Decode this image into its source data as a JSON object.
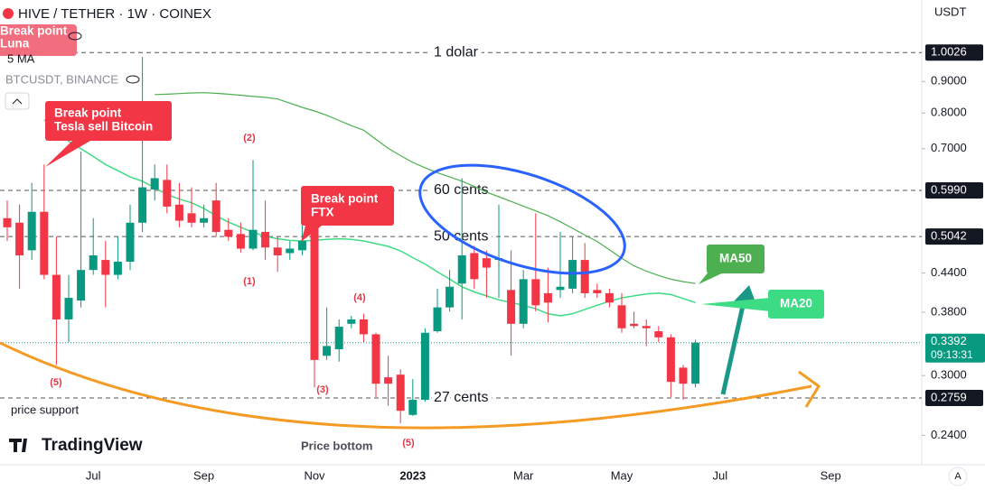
{
  "chart_data": {
    "type": "candlestick",
    "title": "HIVE / TETHER · 1W · COINEX",
    "currency": "USDT",
    "indicator_labels": [
      "5 MA",
      "BTCUSDT, BINANCE"
    ],
    "log_scale": true,
    "grid": false,
    "up_color": "#089981",
    "down_color": "#f23645",
    "ylim": [
      0.215,
      1.22
    ],
    "yticks": [
      {
        "value": 0.9,
        "label": "0.9000"
      },
      {
        "value": 0.8,
        "label": "0.8000"
      },
      {
        "value": 0.7,
        "label": "0.7000"
      },
      {
        "value": 0.44,
        "label": "0.4400"
      },
      {
        "value": 0.38,
        "label": "0.3800"
      },
      {
        "value": 0.3,
        "label": "0.3000"
      },
      {
        "value": 0.24,
        "label": "0.2400"
      }
    ],
    "categories": [
      null,
      null,
      null,
      null,
      null,
      null,
      null,
      "Jul",
      null,
      null,
      null,
      null,
      null,
      null,
      null,
      null,
      "Sep",
      null,
      null,
      null,
      null,
      null,
      null,
      null,
      null,
      "Nov",
      null,
      null,
      null,
      null,
      null,
      null,
      null,
      "2023",
      null,
      null,
      null,
      null,
      null,
      null,
      null,
      null,
      "Mar",
      null,
      null,
      null,
      null,
      null,
      null,
      null,
      "May",
      null,
      null,
      null,
      null,
      null,
      null,
      null,
      "Jul",
      null,
      null,
      null,
      null,
      null,
      null,
      null,
      null,
      "Sep"
    ],
    "open": [
      0.54,
      0.531,
      0.479,
      0.553,
      0.437,
      0.37,
      0.397,
      0.445,
      0.462,
      0.437,
      0.459,
      0.531,
      0.601,
      0.623,
      0.568,
      0.55,
      0.531,
      0.577,
      0.517,
      0.509,
      0.482,
      0.513,
      0.484,
      0.474,
      0.479,
      0.54,
      0.323,
      0.331,
      0.364,
      0.37,
      0.35,
      0.298,
      0.301,
      0.259,
      0.274,
      0.354,
      0.387,
      0.423,
      0.474,
      0.465,
      0.462,
      0.413,
      0.364,
      0.43,
      0.408,
      0.413,
      0.415,
      0.462,
      0.413,
      0.408,
      0.39,
      0.364,
      0.361,
      0.354,
      0.346,
      0.309,
      0.291,
      null,
      null,
      null,
      null,
      null,
      null,
      null,
      null,
      null,
      null,
      null
    ],
    "high": [
      0.577,
      0.568,
      0.616,
      0.66,
      0.504,
      0.437,
      0.693,
      0.54,
      0.496,
      0.504,
      0.568,
      0.986,
      0.66,
      0.66,
      0.616,
      0.606,
      0.568,
      0.616,
      0.54,
      0.531,
      0.671,
      0.577,
      0.504,
      0.496,
      0.531,
      0.55,
      0.387,
      0.37,
      0.375,
      0.378,
      0.352,
      0.323,
      0.307,
      0.296,
      0.358,
      0.415,
      0.445,
      0.627,
      0.487,
      0.479,
      0.568,
      0.479,
      0.445,
      0.55,
      0.449,
      0.513,
      0.504,
      0.492,
      0.423,
      0.415,
      0.408,
      0.381,
      0.37,
      0.361,
      0.35,
      0.312,
      0.343,
      null,
      null,
      null,
      null,
      null,
      null,
      null,
      null,
      null,
      null,
      null
    ],
    "low": [
      0.496,
      0.415,
      0.462,
      0.43,
      0.312,
      0.34,
      0.387,
      0.437,
      0.387,
      0.43,
      0.445,
      0.513,
      0.577,
      0.55,
      0.522,
      0.522,
      0.522,
      0.504,
      0.496,
      0.475,
      0.479,
      0.462,
      0.442,
      0.462,
      0.47,
      0.287,
      0.318,
      0.316,
      0.358,
      0.34,
      0.277,
      0.268,
      0.251,
      0.258,
      0.272,
      0.352,
      0.381,
      0.37,
      0.415,
      0.401,
      0.401,
      0.323,
      0.358,
      0.381,
      0.366,
      0.401,
      0.408,
      0.401,
      0.401,
      0.387,
      0.352,
      0.358,
      0.335,
      0.34,
      0.277,
      0.274,
      0.287,
      null,
      null,
      null,
      null,
      null,
      null,
      null,
      null,
      null,
      null,
      null
    ],
    "close": [
      0.522,
      0.47,
      0.553,
      0.437,
      0.37,
      0.401,
      0.445,
      0.47,
      0.437,
      0.459,
      0.531,
      0.606,
      0.627,
      0.564,
      0.535,
      0.531,
      0.54,
      0.513,
      0.504,
      0.482,
      0.517,
      0.484,
      0.47,
      0.482,
      0.496,
      0.318,
      0.335,
      0.36,
      0.37,
      0.35,
      0.291,
      0.291,
      0.263,
      0.274,
      0.352,
      0.387,
      0.418,
      0.47,
      0.43,
      0.449,
      0.465,
      0.364,
      0.43,
      0.39,
      0.394,
      0.418,
      0.462,
      0.408,
      0.408,
      0.394,
      0.358,
      0.361,
      0.358,
      0.346,
      0.293,
      0.291,
      0.3392,
      null,
      null,
      null,
      null,
      null,
      null,
      null,
      null,
      null,
      null,
      null
    ],
    "series": [
      {
        "name": "MA20",
        "color": "#3ddc84",
        "values": [
          null,
          null,
          null,
          0.78,
          0.75,
          0.72,
          0.7,
          0.68,
          0.66,
          0.645,
          0.63,
          0.62,
          0.605,
          0.59,
          0.58,
          0.572,
          0.56,
          0.545,
          0.532,
          0.522,
          0.512,
          0.505,
          0.5,
          0.497,
          0.496,
          0.497,
          0.499,
          0.5,
          0.499,
          0.496,
          0.491,
          0.486,
          0.478,
          0.466,
          0.455,
          0.442,
          0.43,
          0.418,
          0.41,
          0.404,
          0.398,
          0.394,
          0.39,
          0.385,
          0.378,
          0.375,
          0.378,
          0.384,
          0.39,
          0.396,
          0.401,
          0.404,
          0.407,
          0.408,
          0.406,
          0.4,
          0.394,
          null,
          null,
          null,
          null,
          null,
          null,
          null,
          null,
          null,
          null,
          null
        ]
      },
      {
        "name": "MA50",
        "color": "#4caf50",
        "values": [
          null,
          null,
          null,
          null,
          null,
          null,
          null,
          null,
          null,
          null,
          null,
          null,
          0.857,
          0.858,
          0.86,
          0.862,
          0.863,
          0.861,
          0.858,
          0.855,
          0.851,
          0.848,
          0.843,
          0.83,
          0.817,
          0.806,
          0.793,
          0.778,
          0.763,
          0.75,
          0.725,
          0.701,
          0.682,
          0.665,
          0.652,
          0.64,
          0.63,
          0.62,
          0.608,
          0.595,
          0.585,
          0.575,
          0.565,
          0.555,
          0.545,
          0.533,
          0.52,
          0.507,
          0.495,
          0.48,
          0.465,
          0.452,
          0.443,
          0.436,
          0.43,
          0.426,
          0.423,
          null,
          null,
          null,
          null,
          null,
          null,
          null,
          null,
          null,
          null,
          null
        ]
      }
    ],
    "price_lines": [
      {
        "value": 1.0026,
        "tag": "1.0026",
        "label": "1 dolar"
      },
      {
        "value": 0.599,
        "tag": "0.5990",
        "label": "60 cents"
      },
      {
        "value": 0.5042,
        "tag": "0.5042",
        "label": "50 cents"
      },
      {
        "value": 0.2759,
        "tag": "0.2759",
        "label": "27 cents"
      }
    ],
    "last_price": {
      "value": 0.3392,
      "label": "0.3392",
      "countdown": "09:13:31"
    },
    "callouts": [
      [
        "Break point",
        "Luna"
      ],
      [
        "Break point",
        "Tesla sell Bitcoin"
      ],
      [
        "Break point",
        "FTX"
      ]
    ],
    "wave_labels": [
      "(2)",
      "(1)",
      "(4)",
      "(3)",
      "(5)",
      "(5)"
    ],
    "notes": [
      "price support",
      "Price bottom"
    ],
    "branding": "TradingView",
    "scale_mode": "A"
  }
}
